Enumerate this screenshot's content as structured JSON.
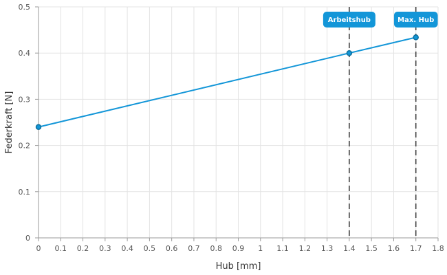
{
  "chart_data": {
    "type": "line",
    "xlabel": "Hub [mm]",
    "ylabel": "Federkraft [N]",
    "xlim": [
      0,
      1.8
    ],
    "ylim": [
      0,
      0.5
    ],
    "x_ticks": [
      "0",
      "0.1",
      "0.2",
      "0.3",
      "0.4",
      "0.5",
      "0.6",
      "0.7",
      "0.8",
      "0.9",
      "1",
      "1.1",
      "1.2",
      "1.3",
      "1.4",
      "1.5",
      "1.6",
      "1.7",
      "1.8"
    ],
    "y_ticks": [
      "0",
      "0.1",
      "0.2",
      "0.3",
      "0.4",
      "0.5"
    ],
    "grid": true,
    "series": [
      {
        "x": [
          0,
          1.4,
          1.7
        ],
        "y": [
          0.24,
          0.4,
          0.434
        ],
        "color": "#1396d8"
      }
    ],
    "markers": [
      {
        "x": 1.4,
        "label": "Arbeitshub"
      },
      {
        "x": 1.7,
        "label": "Max. Hub"
      }
    ]
  },
  "colors": {
    "series": "#1396d8",
    "point_stroke": "#0e6f9c",
    "marker_line": "#444444",
    "badge": "#1396d8"
  }
}
